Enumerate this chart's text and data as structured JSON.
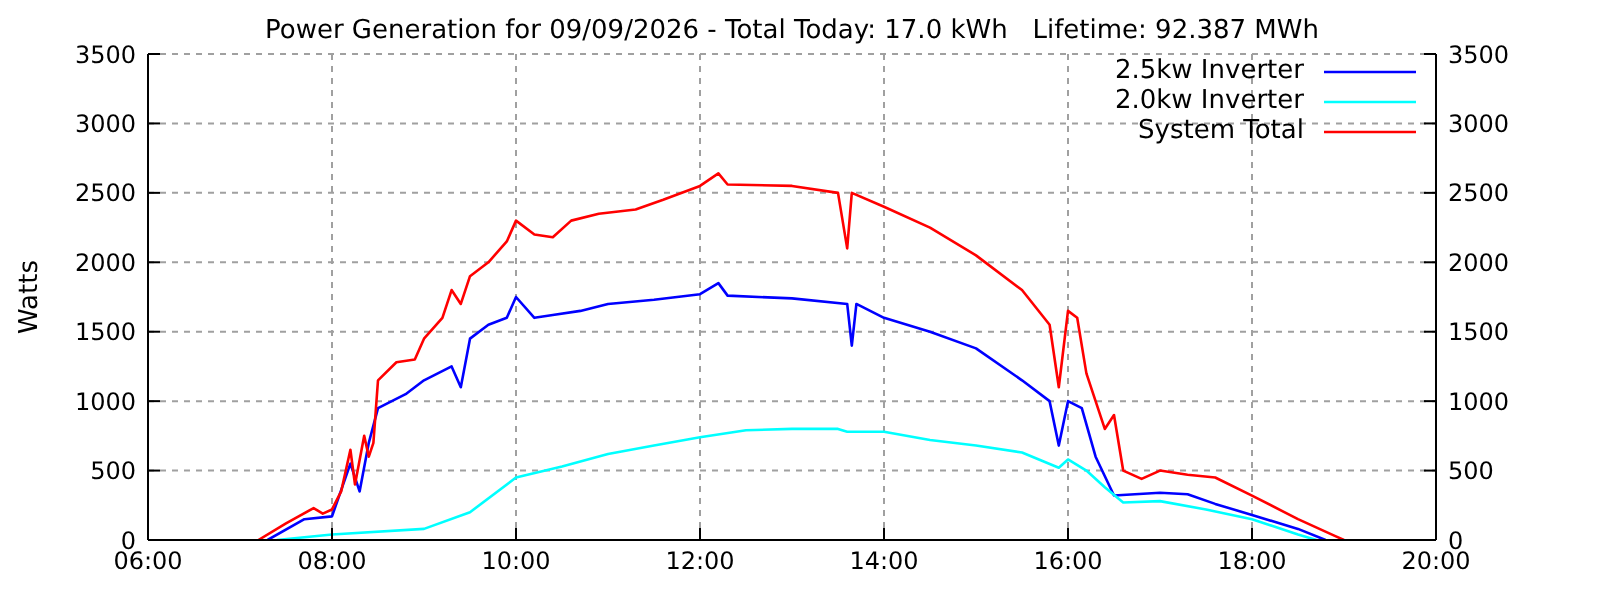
{
  "chart_data": {
    "type": "line",
    "title": "Power Generation for 09/09/2026 - Total Today: 17.0 kWh   Lifetime: 92.387 MWh",
    "ylabel": "Watts",
    "xlim": [
      6,
      20
    ],
    "xticks": [
      {
        "value": 6,
        "label": "06:00"
      },
      {
        "value": 8,
        "label": "08:00"
      },
      {
        "value": 10,
        "label": "10:00"
      },
      {
        "value": 12,
        "label": "12:00"
      },
      {
        "value": 14,
        "label": "14:00"
      },
      {
        "value": 16,
        "label": "16:00"
      },
      {
        "value": 18,
        "label": "18:00"
      },
      {
        "value": 20,
        "label": "20:00"
      }
    ],
    "ylim": [
      0,
      3500
    ],
    "yticks": [
      0,
      500,
      1000,
      1500,
      2000,
      2500,
      3000,
      3500
    ],
    "y2lim": [
      0,
      3500
    ],
    "y2ticks": [
      0,
      500,
      1000,
      1500,
      2000,
      2500,
      3000,
      3500
    ],
    "grid": true,
    "legend": "top right",
    "marker": "none",
    "line_style": "solid",
    "series": [
      {
        "name": "2.5kw Inverter",
        "color": "#0000ff",
        "x": [
          7.3,
          7.7,
          8.0,
          8.2,
          8.3,
          8.4,
          8.5,
          8.8,
          9.0,
          9.3,
          9.4,
          9.5,
          9.7,
          9.9,
          10.0,
          10.2,
          10.4,
          10.7,
          11.0,
          11.5,
          12.0,
          12.2,
          12.3,
          13.0,
          13.6,
          13.65,
          13.7,
          14.0,
          14.5,
          15.0,
          15.5,
          15.8,
          15.9,
          16.0,
          16.15,
          16.3,
          16.5,
          17.0,
          17.3,
          17.6,
          18.0,
          18.5,
          18.8
        ],
        "values": [
          0,
          150,
          170,
          550,
          350,
          700,
          950,
          1050,
          1150,
          1250,
          1100,
          1450,
          1550,
          1600,
          1750,
          1600,
          1620,
          1650,
          1700,
          1730,
          1770,
          1850,
          1760,
          1740,
          1700,
          1400,
          1700,
          1600,
          1500,
          1380,
          1150,
          1000,
          680,
          1000,
          950,
          600,
          320,
          340,
          330,
          260,
          180,
          80,
          0
        ]
      },
      {
        "name": "2.0kw Inverter",
        "color": "#00ffff",
        "x": [
          7.4,
          8.0,
          9.0,
          9.5,
          10.0,
          10.5,
          11.0,
          11.5,
          12.0,
          12.5,
          13.0,
          13.5,
          13.6,
          14.0,
          14.5,
          15.0,
          15.5,
          15.9,
          16.0,
          16.2,
          16.4,
          16.6,
          17.0,
          17.5,
          18.0,
          18.5,
          18.7
        ],
        "values": [
          0,
          40,
          80,
          200,
          450,
          530,
          620,
          680,
          740,
          790,
          800,
          800,
          780,
          780,
          720,
          680,
          630,
          520,
          580,
          500,
          380,
          270,
          280,
          220,
          150,
          40,
          0
        ]
      },
      {
        "name": "System Total",
        "color": "#ff0000",
        "x": [
          7.2,
          7.5,
          7.8,
          7.9,
          8.0,
          8.1,
          8.2,
          8.25,
          8.35,
          8.4,
          8.45,
          8.5,
          8.7,
          8.9,
          9.0,
          9.2,
          9.3,
          9.4,
          9.5,
          9.7,
          9.9,
          10.0,
          10.2,
          10.4,
          10.6,
          10.9,
          11.3,
          11.6,
          12.0,
          12.2,
          12.3,
          13.0,
          13.5,
          13.6,
          13.65,
          14.0,
          14.5,
          15.0,
          15.5,
          15.8,
          15.9,
          16.0,
          16.1,
          16.2,
          16.4,
          16.5,
          16.6,
          16.8,
          17.0,
          17.3,
          17.6,
          18.0,
          18.5,
          18.9,
          19.0
        ],
        "values": [
          0,
          120,
          230,
          190,
          220,
          350,
          650,
          400,
          750,
          600,
          700,
          1150,
          1280,
          1300,
          1450,
          1600,
          1800,
          1700,
          1900,
          2000,
          2150,
          2300,
          2200,
          2180,
          2300,
          2350,
          2380,
          2450,
          2550,
          2640,
          2560,
          2550,
          2500,
          2100,
          2500,
          2400,
          2250,
          2050,
          1800,
          1550,
          1100,
          1650,
          1600,
          1200,
          800,
          900,
          500,
          440,
          500,
          470,
          450,
          320,
          150,
          30,
          0
        ]
      }
    ]
  }
}
